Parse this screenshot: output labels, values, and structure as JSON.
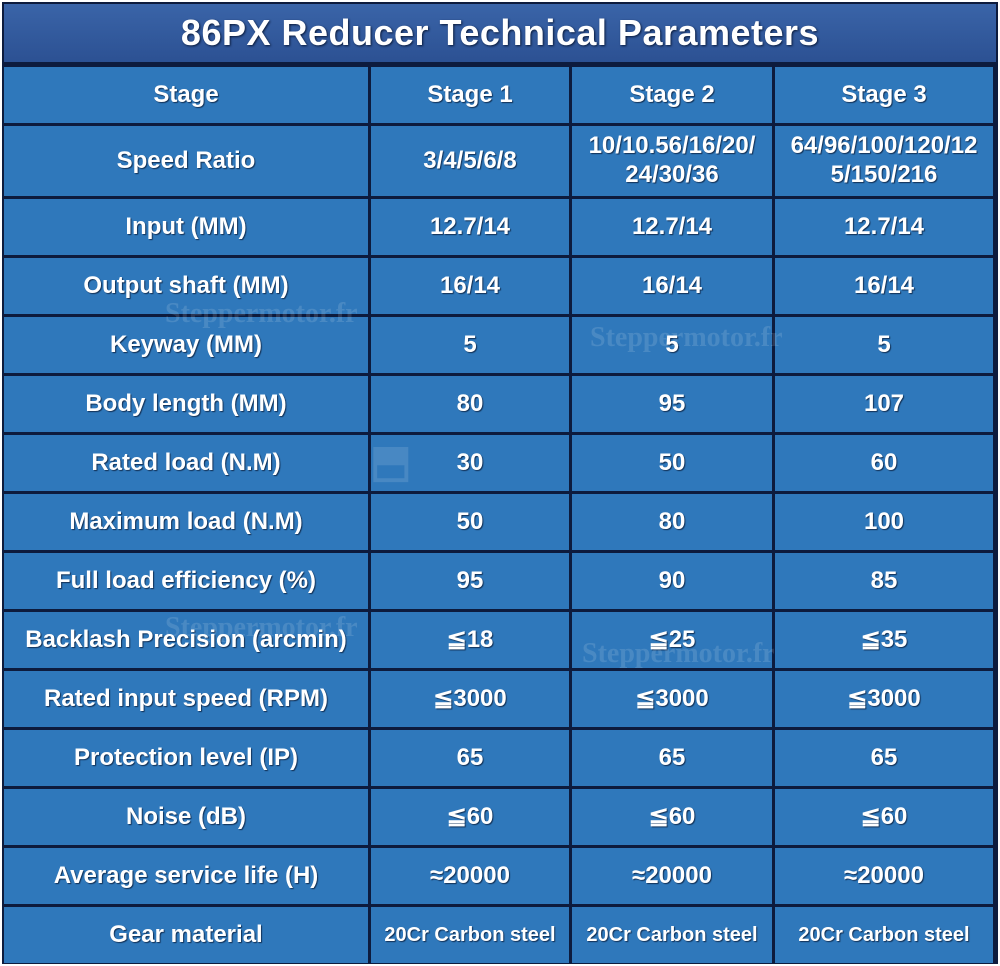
{
  "title": "86PX Reducer Technical Parameters",
  "header": [
    "Stage",
    "Stage 1",
    "Stage 2",
    "Stage 3"
  ],
  "rows": [
    {
      "label": "Speed Ratio",
      "values": [
        "3/4/5/6/8",
        "10/10.56/16/20/\n24/30/36",
        "64/96/100/120/12\n5/150/216"
      ]
    },
    {
      "label": "Input  (MM)",
      "values": [
        "12.7/14",
        "12.7/14",
        "12.7/14"
      ]
    },
    {
      "label": "Output shaft (MM)",
      "values": [
        "16/14",
        "16/14",
        "16/14"
      ]
    },
    {
      "label": "Keyway (MM)",
      "values": [
        "5",
        "5",
        "5"
      ]
    },
    {
      "label": "Body length (MM)",
      "values": [
        "80",
        "95",
        "107"
      ]
    },
    {
      "label": "Rated load (N.M)",
      "values": [
        "30",
        "50",
        "60"
      ]
    },
    {
      "label": "Maximum load (N.M)",
      "values": [
        "50",
        "80",
        "100"
      ]
    },
    {
      "label": "Full load efficiency (%)",
      "values": [
        "95",
        "90",
        "85"
      ]
    },
    {
      "label": "Backlash Precision (arcmin)",
      "values": [
        "≦18",
        "≦25",
        "≦35"
      ]
    },
    {
      "label": "Rated input speed (RPM)",
      "values": [
        "≦3000",
        "≦3000",
        "≦3000"
      ]
    },
    {
      "label": "Protection level (IP)",
      "values": [
        "65",
        "65",
        "65"
      ]
    },
    {
      "label": "Noise (dB)",
      "values": [
        "≦60",
        "≦60",
        "≦60"
      ]
    },
    {
      "label": "Average service life (H)",
      "values": [
        "≈20000",
        "≈20000",
        "≈20000"
      ]
    },
    {
      "label": "Gear material",
      "values": [
        "20Cr Carbon steel",
        "20Cr Carbon steel",
        "20Cr Carbon steel"
      ]
    }
  ],
  "watermark": {
    "text": "Steppermotor.fr",
    "logo_text": "Stepper\nMotor.fr"
  },
  "colors": {
    "cell": "#2f78bb",
    "title_bar": "#2c5193",
    "border": "#0d1b3d",
    "text": "#ffffff"
  }
}
